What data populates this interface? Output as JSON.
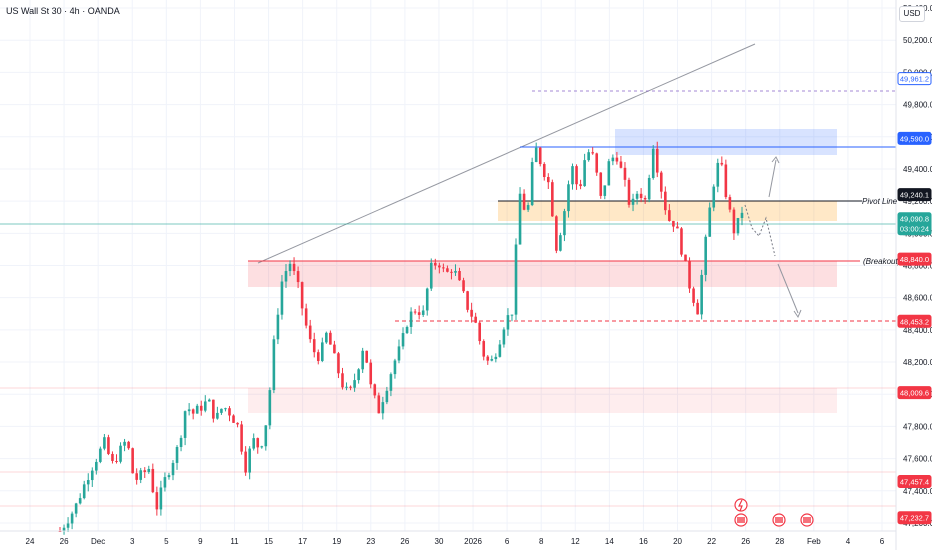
{
  "symbol_title": "US Wall St 30 · 4h · OANDA",
  "currency": "USD",
  "annotations": {
    "pivot_line": "Pivot Line",
    "breakout": "(Breakout)"
  },
  "price_badges": [
    {
      "label": "49,961.2",
      "price": 49961.2,
      "color": "#2962ff",
      "style": "outline"
    },
    {
      "label": "49,590.0",
      "price": 49590.0,
      "color": "#2962ff",
      "style": "solid"
    },
    {
      "label": "49,240.1",
      "price": 49240.1,
      "color": "#131722",
      "style": "solid"
    },
    {
      "label": "49,090.8",
      "sublabel": "03:00:24",
      "price": 49090.8,
      "color": "#26a69a",
      "style": "solid"
    },
    {
      "label": "48,840.0",
      "price": 48840.0,
      "color": "#f23645",
      "style": "solid"
    },
    {
      "label": "48,453.2",
      "price": 48453.2,
      "color": "#f23645",
      "style": "solid"
    },
    {
      "label": "48,009.6",
      "price": 48009.6,
      "color": "#f23645",
      "style": "solid"
    },
    {
      "label": "47,457.4",
      "price": 47457.4,
      "color": "#f23645",
      "style": "solid"
    },
    {
      "label": "47,232.7",
      "price": 47232.7,
      "color": "#f23645",
      "style": "solid"
    }
  ],
  "chart_data": {
    "type": "candlestick",
    "title": "US Wall St 30 · 4h · OANDA",
    "ylim": [
      47150,
      50450
    ],
    "y_ticks": [
      "50,400.0",
      "50,200.0",
      "50,000.0",
      "49,800.0",
      "49,600.0",
      "49,400.0",
      "49,200.0",
      "49,000.0",
      "48,800.0",
      "48,600.0",
      "48,400.0",
      "48,200.0",
      "48,000.0",
      "47,800.0",
      "47,600.0",
      "47,400.0",
      "47,200.0"
    ],
    "x_ticks": [
      "24",
      "26",
      "Dec",
      "3",
      "5",
      "9",
      "11",
      "15",
      "17",
      "19",
      "23",
      "26",
      "30",
      "2026",
      "6",
      "8",
      "12",
      "14",
      "16",
      "20",
      "22",
      "26",
      "28",
      "Feb",
      "4",
      "6"
    ],
    "colors": {
      "up": "#26a69a",
      "down": "#f23645",
      "grid": "#f0f3fa"
    },
    "close_path": [
      [
        0,
        47150
      ],
      [
        2,
        47290
      ],
      [
        4,
        47520
      ],
      [
        6,
        47700
      ],
      [
        7,
        47560
      ],
      [
        9,
        47720
      ],
      [
        10,
        47460
      ],
      [
        12,
        47540
      ],
      [
        13,
        47290
      ],
      [
        14,
        47450
      ],
      [
        16,
        47680
      ],
      [
        17,
        47930
      ],
      [
        18,
        47880
      ],
      [
        20,
        47960
      ],
      [
        21,
        47840
      ],
      [
        22,
        47930
      ],
      [
        23,
        47880
      ],
      [
        24,
        47800
      ],
      [
        25,
        47540
      ],
      [
        26,
        47720
      ],
      [
        27,
        47660
      ],
      [
        28,
        47870
      ],
      [
        29,
        48390
      ],
      [
        30,
        48720
      ],
      [
        31,
        48820
      ],
      [
        32,
        48690
      ],
      [
        33,
        48460
      ],
      [
        34,
        48280
      ],
      [
        35,
        48230
      ],
      [
        36,
        48380
      ],
      [
        38,
        48070
      ],
      [
        39,
        47990
      ],
      [
        40,
        48130
      ],
      [
        41,
        48320
      ],
      [
        42,
        48020
      ],
      [
        43,
        47900
      ],
      [
        44,
        48040
      ],
      [
        45,
        48190
      ],
      [
        46,
        48300
      ],
      [
        47,
        48480
      ],
      [
        48,
        48530
      ],
      [
        49,
        48500
      ],
      [
        50,
        48780
      ],
      [
        51,
        48830
      ],
      [
        52,
        48740
      ],
      [
        53,
        48790
      ],
      [
        54,
        48670
      ],
      [
        55,
        48540
      ],
      [
        56,
        48450
      ],
      [
        57,
        48260
      ],
      [
        58,
        48180
      ],
      [
        59,
        48290
      ],
      [
        60,
        48450
      ],
      [
        61,
        48520
      ],
      [
        62,
        49250
      ],
      [
        63,
        49100
      ],
      [
        64,
        49550
      ],
      [
        65,
        49420
      ],
      [
        66,
        49300
      ],
      [
        67,
        48900
      ],
      [
        68,
        49130
      ],
      [
        69,
        49430
      ],
      [
        70,
        49250
      ],
      [
        71,
        49520
      ],
      [
        72,
        49470
      ],
      [
        73,
        49200
      ],
      [
        74,
        49430
      ],
      [
        75,
        49500
      ],
      [
        76,
        49340
      ],
      [
        77,
        49150
      ],
      [
        78,
        49270
      ],
      [
        79,
        49200
      ],
      [
        80,
        49560
      ],
      [
        81,
        49300
      ],
      [
        82,
        49090
      ],
      [
        83,
        49060
      ],
      [
        84,
        48870
      ],
      [
        85,
        48660
      ],
      [
        86,
        48520
      ],
      [
        87,
        48910
      ],
      [
        88,
        49280
      ],
      [
        89,
        49470
      ],
      [
        90,
        49200
      ],
      [
        91,
        49000
      ],
      [
        92,
        49140
      ]
    ]
  }
}
